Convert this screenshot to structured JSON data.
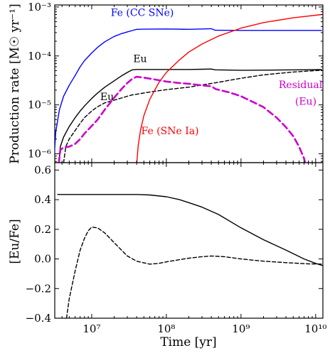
{
  "chart_data": [
    {
      "type": "line",
      "ylabel": "Production rate [M☉ yr⁻¹]",
      "x_scale": "log",
      "y_scale": "log",
      "xlim": [
        3200000.0,
        12500000000.0
      ],
      "ylim": [
        6.6e-07,
        0.0011
      ],
      "y_ticks": [
        {
          "value": 1e-06,
          "label": "10⁻⁶"
        },
        {
          "value": 1e-05,
          "label": "10⁻⁵"
        },
        {
          "value": 0.0001,
          "label": "10⁻⁴"
        },
        {
          "value": 0.001,
          "label": "10⁻³"
        }
      ],
      "annotations": [
        {
          "text": "Fe (CC SNe)",
          "color": "#0000ff",
          "x": 18000000.0,
          "y": 0.00065
        },
        {
          "text": "Eu",
          "color": "#000000",
          "x": 36000000.0,
          "y": 7.5e-05
        },
        {
          "text": "Eu",
          "color": "#000000",
          "x": 13000000.0,
          "y": 1.25e-05
        },
        {
          "text": "Fe (SNe Ia)",
          "color": "#ff0000",
          "x": 46000000.0,
          "y": 2.5e-06
        },
        {
          "text": "Residual",
          "color": "#cc00cc",
          "x": 3200000000.0,
          "y": 2.2e-05
        },
        {
          "text": "(Eu)",
          "color": "#cc00cc",
          "x": 5300000000.0,
          "y": 1e-05
        }
      ],
      "series": [
        {
          "color": "#0000ff",
          "style": "solid",
          "width": 1.4,
          "x": [
            3000000.0,
            3300000.0,
            3700000.0,
            4200000.0,
            5000000.0,
            6000000.0,
            7000000.0,
            8000000.0,
            10000000.0,
            12000000.0,
            15000000.0,
            20000000.0,
            25000000.0,
            30000000.0,
            35000000.0,
            40000000.0,
            50000000.0,
            100000000.0,
            200000000.0,
            300000000.0,
            400000000.0,
            450000000.0,
            1000000000.0,
            5000000000.0,
            12000000000.0
          ],
          "y": [
            3e-07,
            2.8e-06,
            8e-06,
            1.5e-05,
            2.5e-05,
            4e-05,
            6e-05,
            8e-05,
            0.000115,
            0.00015,
            0.000195,
            0.00025,
            0.000285,
            0.00031,
            0.00033,
            0.00035,
            0.000352,
            0.000355,
            0.00035,
            0.000355,
            0.00036,
            0.000335,
            0.000333,
            0.000332,
            0.000332
          ]
        },
        {
          "color": "#000000",
          "style": "solid",
          "width": 1.4,
          "x": [
            3500000.0,
            3800000.0,
            4200000.0,
            5000000.0,
            6000000.0,
            7000000.0,
            8000000.0,
            10000000.0,
            12000000.0,
            15000000.0,
            20000000.0,
            25000000.0,
            30000000.0,
            35000000.0,
            40000000.0,
            50000000.0,
            100000000.0,
            200000000.0,
            300000000.0,
            400000000.0,
            450000000.0,
            1000000000.0,
            3000000000.0,
            6000000000.0,
            12000000000.0
          ],
          "y": [
            3e-07,
            1.4e-06,
            2.2e-06,
            3.6e-06,
            5.5e-06,
            7.5e-06,
            9.5e-06,
            1.35e-05,
            1.75e-05,
            2.3e-05,
            3.1e-05,
            3.9e-05,
            4.6e-05,
            5.2e-05,
            5.3e-05,
            5.3e-05,
            5.3e-05,
            5.3e-05,
            5.35e-05,
            5.4e-05,
            5.2e-05,
            5.1e-05,
            5.15e-05,
            5.2e-05,
            5.25e-05
          ]
        },
        {
          "color": "#000000",
          "style": "dashed",
          "width": 1.4,
          "x": [
            4100000.0,
            4500000.0,
            5000000.0,
            6000000.0,
            7000000.0,
            8000000.0,
            10000000.0,
            12000000.0,
            15000000.0,
            20000000.0,
            25000000.0,
            30000000.0,
            35000000.0,
            40000000.0,
            50000000.0,
            70000000.0,
            100000000.0,
            200000000.0,
            500000000.0,
            1000000000.0,
            2000000000.0,
            5000000000.0,
            12000000000.0
          ],
          "y": [
            5e-07,
            1.4e-06,
            2e-06,
            3e-06,
            4.2e-06,
            5.5e-06,
            7.5e-06,
            9.2e-06,
            1.1e-05,
            1.25e-05,
            1.38e-05,
            1.5e-05,
            1.6e-05,
            1.65e-05,
            1.75e-05,
            1.9e-05,
            2.05e-05,
            2.3e-05,
            2.9e-05,
            3.5e-05,
            4.1e-05,
            4.7e-05,
            5.1e-05
          ]
        },
        {
          "color": "#ff0000",
          "style": "solid",
          "width": 1.4,
          "x": [
            40000000.0,
            42000000.0,
            45000000.0,
            50000000.0,
            60000000.0,
            80000000.0,
            100000000.0,
            150000000.0,
            200000000.0,
            300000000.0,
            500000000.0,
            1000000000.0,
            2000000000.0,
            5000000000.0,
            12000000000.0
          ],
          "y": [
            6e-07,
            1.5e-06,
            3e-06,
            6e-06,
            1.3e-05,
            2.9e-05,
            4.6e-05,
            8.3e-05,
            0.00012,
            0.000175,
            0.000255,
            0.00037,
            0.00048,
            0.0006,
            0.0007
          ]
        },
        {
          "color": "#cc00cc",
          "style": "dashed",
          "width": 2.6,
          "x": [
            3500000.0,
            3800000.0,
            4200000.0,
            5000000.0,
            6000000.0,
            7000000.0,
            8000000.0,
            10000000.0,
            12000000.0,
            15000000.0,
            20000000.0,
            25000000.0,
            30000000.0,
            35000000.0,
            40000000.0,
            50000000.0,
            70000000.0,
            100000000.0,
            150000000.0,
            200000000.0,
            300000000.0,
            400000000.0,
            460000000.0,
            700000000.0,
            1000000000.0,
            2000000000.0,
            3000000000.0,
            4000000000.0,
            5000000000.0,
            6000000000.0,
            7000000000.0,
            7500000000.0
          ],
          "y": [
            4e-07,
            1.2e-06,
            1.35e-06,
            1.4e-06,
            1.6e-06,
            2e-06,
            2.6e-06,
            3.7e-06,
            5e-06,
            8e-06,
            1.4e-05,
            2.1e-05,
            2.8e-05,
            3.4e-05,
            3.75e-05,
            3.6e-05,
            3.3e-05,
            3e-05,
            2.8e-05,
            2.7e-05,
            2.5e-05,
            2.4e-05,
            2.1e-05,
            1.8e-05,
            1.5e-05,
            9e-06,
            5.5e-06,
            3.5e-06,
            2.3e-06,
            1.4e-06,
            8e-07,
            5e-07
          ]
        }
      ]
    },
    {
      "type": "line",
      "xlabel": "Time [yr]",
      "ylabel": "[Eu/Fe]",
      "x_scale": "log",
      "y_scale": "linear",
      "xlim": [
        3200000.0,
        12500000000.0
      ],
      "ylim": [
        -0.4,
        0.65
      ],
      "x_ticks": [
        {
          "value": 10000000.0,
          "label": "10⁷"
        },
        {
          "value": 100000000.0,
          "label": "10⁸"
        },
        {
          "value": 1000000000.0,
          "label": "10⁹"
        },
        {
          "value": 10000000000.0,
          "label": "10¹⁰"
        }
      ],
      "y_ticks": [
        {
          "value": -0.4,
          "label": "−0.4"
        },
        {
          "value": -0.2,
          "label": "−0.2"
        },
        {
          "value": 0.0,
          "label": "0.0"
        },
        {
          "value": 0.2,
          "label": "0.2"
        },
        {
          "value": 0.4,
          "label": "0.4"
        },
        {
          "value": 0.6,
          "label": "0.6"
        }
      ],
      "series": [
        {
          "color": "#000000",
          "style": "solid",
          "width": 1.4,
          "x": [
            3500000.0,
            10000000.0,
            20000000.0,
            40000000.0,
            60000000.0,
            100000000.0,
            150000000.0,
            200000000.0,
            300000000.0,
            500000000.0,
            1000000000.0,
            2000000000.0,
            4000000000.0,
            7000000000.0,
            10000000000.0,
            12500000000.0
          ],
          "y": [
            0.435,
            0.435,
            0.435,
            0.435,
            0.432,
            0.42,
            0.4,
            0.38,
            0.35,
            0.3,
            0.21,
            0.13,
            0.06,
            0.0,
            -0.03,
            -0.045
          ]
        },
        {
          "color": "#000000",
          "style": "dashed",
          "width": 1.4,
          "x": [
            4600000.0,
            5000000.0,
            5500000.0,
            6000000.0,
            7000000.0,
            8000000.0,
            9000000.0,
            10000000.0,
            12000000.0,
            15000000.0,
            20000000.0,
            30000000.0,
            40000000.0,
            60000000.0,
            80000000.0,
            100000000.0,
            150000000.0,
            200000000.0,
            300000000.0,
            400000000.0,
            600000000.0,
            1000000000.0,
            2000000000.0,
            4000000000.0,
            8000000000.0,
            12500000000.0
          ],
          "y": [
            -0.4,
            -0.27,
            -0.17,
            -0.08,
            0.06,
            0.14,
            0.19,
            0.215,
            0.21,
            0.175,
            0.11,
            0.02,
            -0.015,
            -0.035,
            -0.03,
            -0.02,
            -0.005,
            0.005,
            0.015,
            0.02,
            0.015,
            0.0,
            -0.015,
            -0.025,
            -0.033,
            -0.035
          ]
        }
      ]
    }
  ]
}
